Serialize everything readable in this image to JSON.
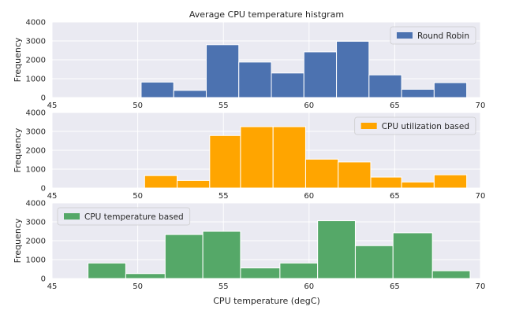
{
  "chart_data": {
    "title": "Average CPU temperature histgram",
    "panels": [
      {
        "type": "bar",
        "series_name": "Round Robin",
        "color": "#4c72b0",
        "legend_position": "top-right",
        "ylabel": "Frequency",
        "xlabel": "",
        "xlim": [
          45,
          70
        ],
        "ylim": [
          0,
          4000
        ],
        "xticks": [
          45,
          50,
          55,
          60,
          65,
          70
        ],
        "yticks": [
          0,
          1000,
          2000,
          3000,
          4000
        ],
        "bins": [
          {
            "x0": 50.2,
            "x1": 52.1,
            "value": 820
          },
          {
            "x0": 52.1,
            "x1": 54.0,
            "value": 380
          },
          {
            "x0": 54.0,
            "x1": 55.9,
            "value": 2800
          },
          {
            "x0": 55.9,
            "x1": 57.8,
            "value": 1880
          },
          {
            "x0": 57.8,
            "x1": 59.7,
            "value": 1300
          },
          {
            "x0": 59.7,
            "x1": 61.6,
            "value": 2420
          },
          {
            "x0": 61.6,
            "x1": 63.5,
            "value": 2980
          },
          {
            "x0": 63.5,
            "x1": 65.4,
            "value": 1200
          },
          {
            "x0": 65.4,
            "x1": 67.3,
            "value": 440
          },
          {
            "x0": 67.3,
            "x1": 69.2,
            "value": 790
          }
        ]
      },
      {
        "type": "bar",
        "series_name": "CPU utilization based",
        "color": "#ffa500",
        "legend_position": "top-right",
        "ylabel": "Frequency",
        "xlabel": "",
        "xlim": [
          45,
          70
        ],
        "ylim": [
          0,
          4000
        ],
        "xticks": [
          45,
          50,
          55,
          60,
          65,
          70
        ],
        "yticks": [
          0,
          1000,
          2000,
          3000,
          4000
        ],
        "bins": [
          {
            "x0": 50.4,
            "x1": 52.3,
            "value": 660
          },
          {
            "x0": 52.3,
            "x1": 54.2,
            "value": 400
          },
          {
            "x0": 54.2,
            "x1": 56.0,
            "value": 2780
          },
          {
            "x0": 56.0,
            "x1": 57.9,
            "value": 3250
          },
          {
            "x0": 57.9,
            "x1": 59.8,
            "value": 3250
          },
          {
            "x0": 59.8,
            "x1": 61.7,
            "value": 1530
          },
          {
            "x0": 61.7,
            "x1": 63.6,
            "value": 1380
          },
          {
            "x0": 63.6,
            "x1": 65.4,
            "value": 580
          },
          {
            "x0": 65.4,
            "x1": 67.3,
            "value": 320
          },
          {
            "x0": 67.3,
            "x1": 69.2,
            "value": 700
          }
        ]
      },
      {
        "type": "bar",
        "series_name": "CPU temperature based",
        "color": "#55a868",
        "legend_position": "top-left",
        "ylabel": "Frequency",
        "xlabel": "CPU temperature (degC)",
        "xlim": [
          45,
          70
        ],
        "ylim": [
          0,
          4000
        ],
        "xticks": [
          45,
          50,
          55,
          60,
          65,
          70
        ],
        "yticks": [
          0,
          1000,
          2000,
          3000,
          4000
        ],
        "bins": [
          {
            "x0": 47.1,
            "x1": 49.3,
            "value": 820
          },
          {
            "x0": 49.3,
            "x1": 51.6,
            "value": 260
          },
          {
            "x0": 51.6,
            "x1": 53.8,
            "value": 2330
          },
          {
            "x0": 53.8,
            "x1": 56.0,
            "value": 2500
          },
          {
            "x0": 56.0,
            "x1": 58.3,
            "value": 560
          },
          {
            "x0": 58.3,
            "x1": 60.5,
            "value": 820
          },
          {
            "x0": 60.5,
            "x1": 62.7,
            "value": 3060
          },
          {
            "x0": 62.7,
            "x1": 64.9,
            "value": 1740
          },
          {
            "x0": 64.9,
            "x1": 67.2,
            "value": 2420
          },
          {
            "x0": 67.2,
            "x1": 69.4,
            "value": 410
          }
        ]
      }
    ]
  }
}
